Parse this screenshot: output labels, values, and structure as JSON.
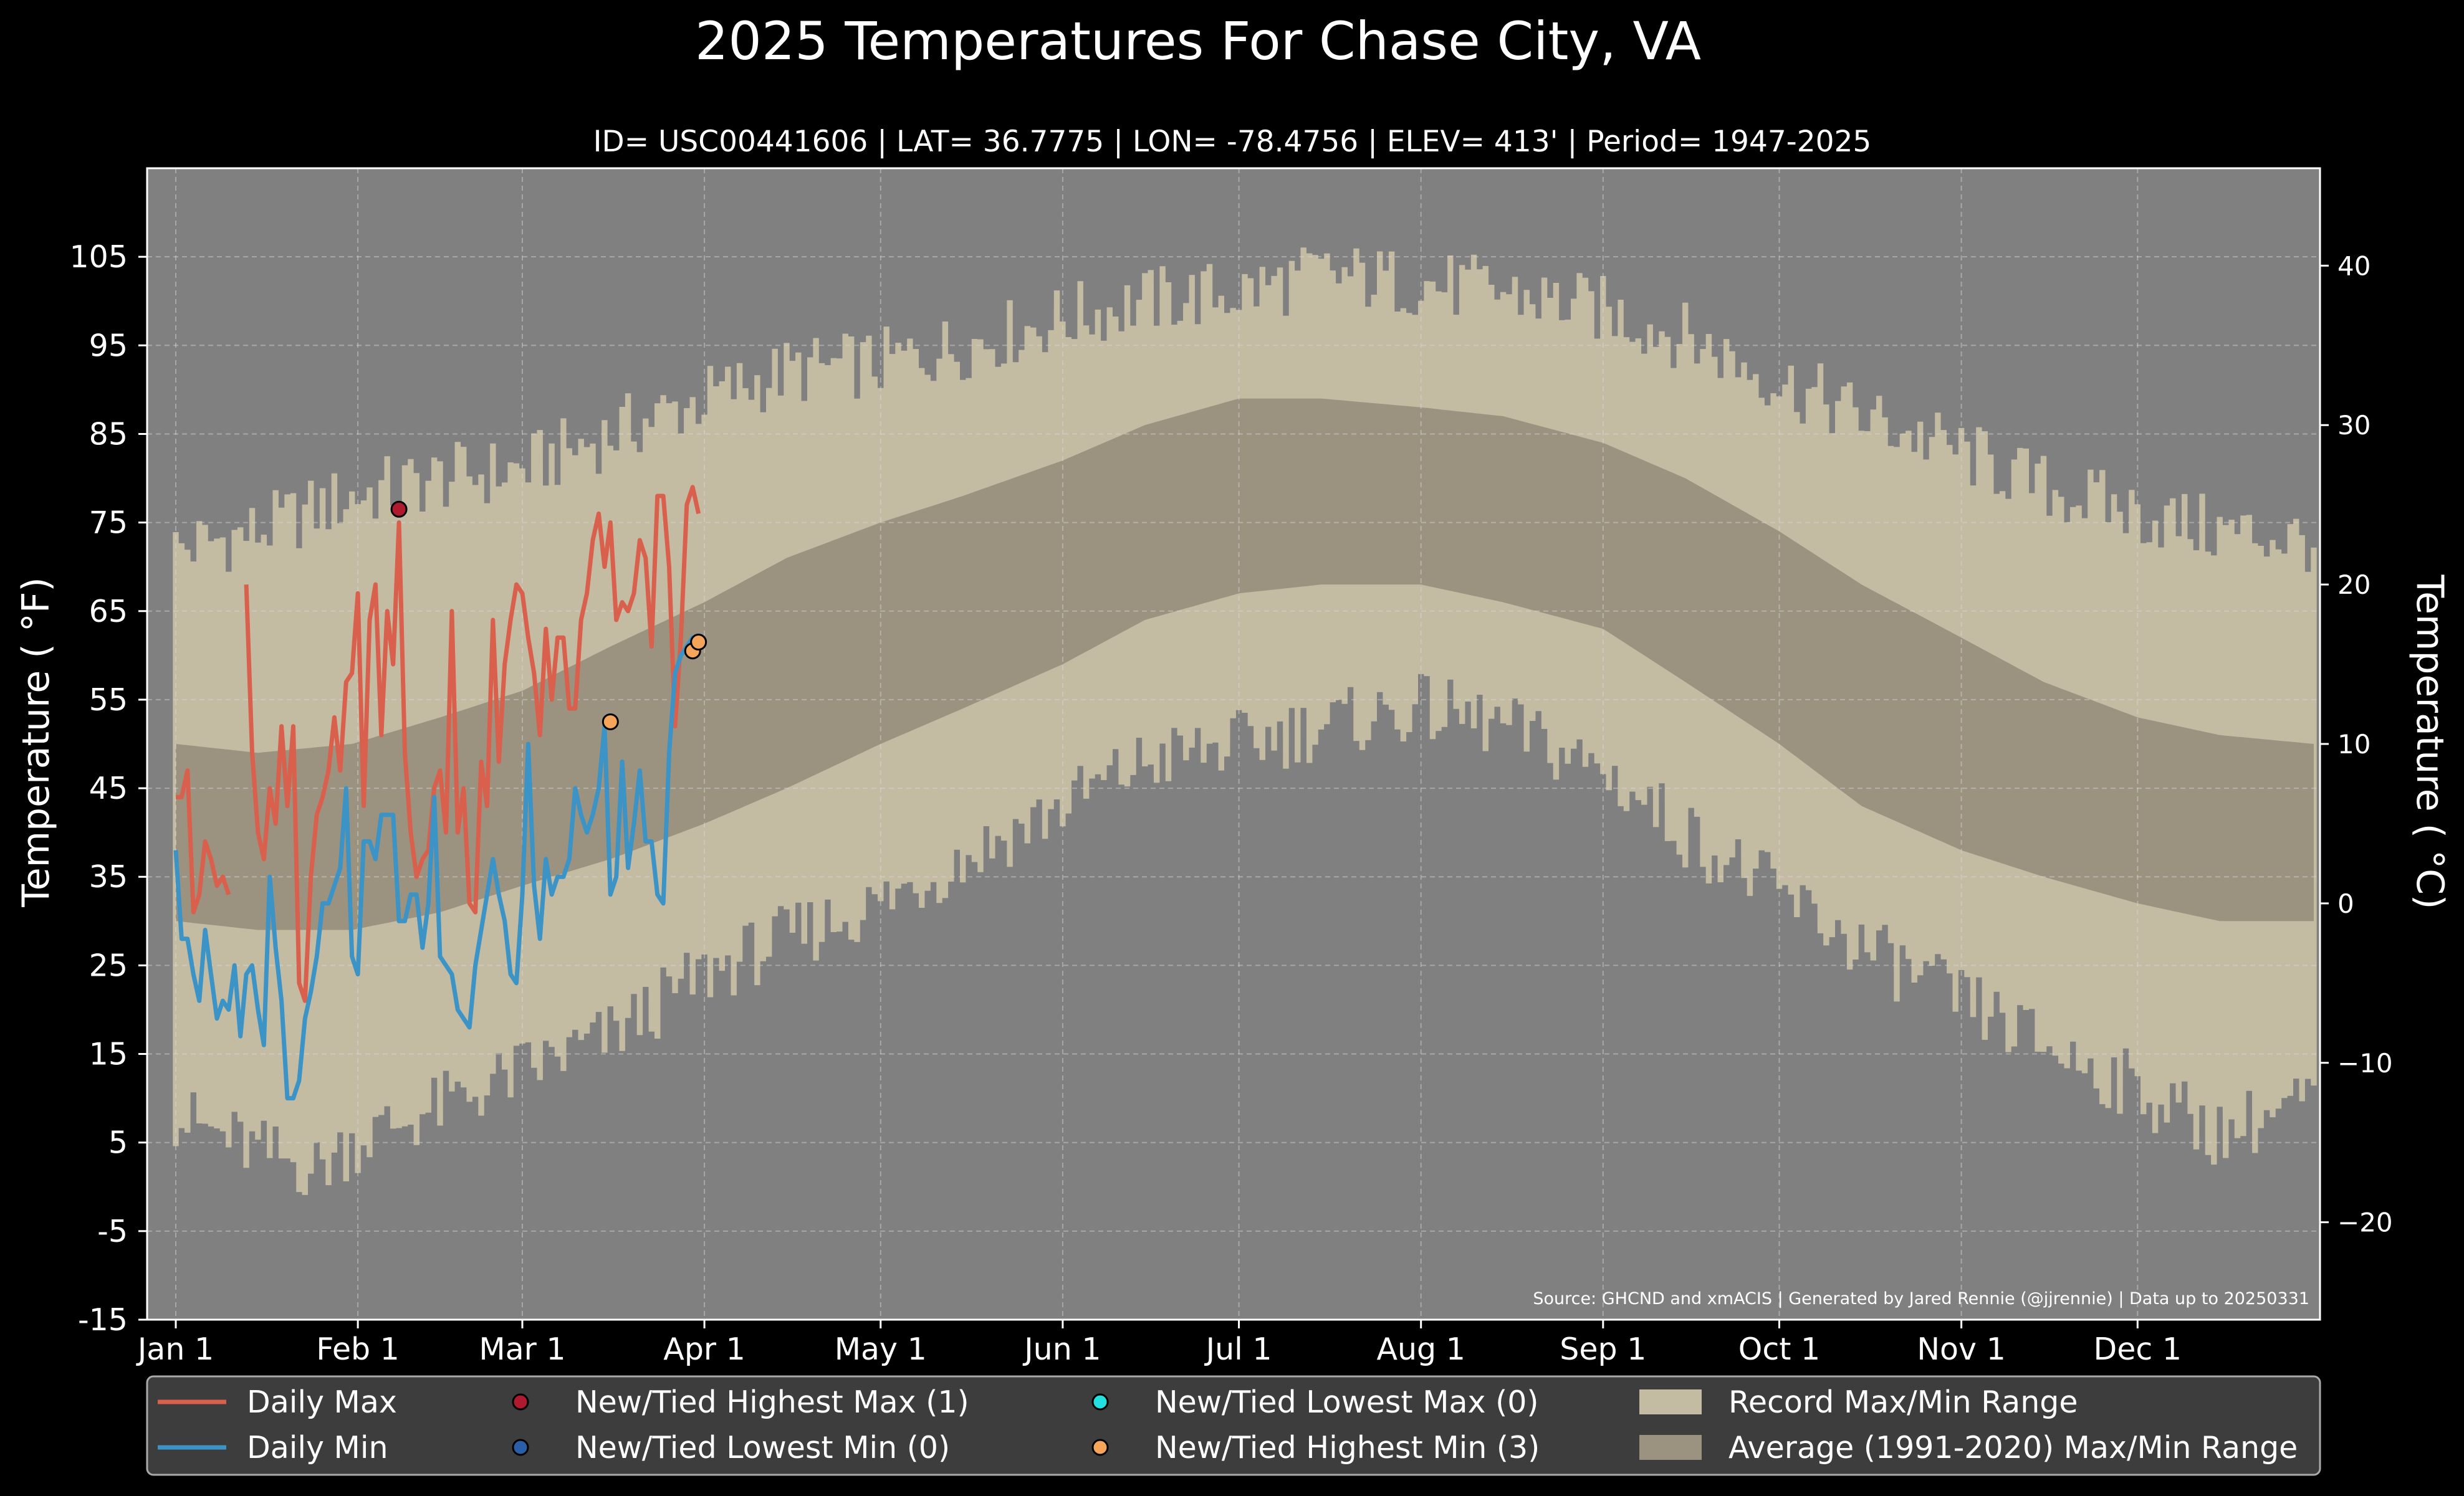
{
  "title": "2025 Temperatures For Chase City, VA",
  "subtitle": "ID= USC00441606 | LAT= 36.7775 | LON= -78.4756 | ELEV= 413' | Period= 1947-2025",
  "source": "Source: GHCND and xmACIS | Generated by Jared Rennie (@jjrennie) | Data up to 20250331",
  "colors": {
    "background": "#000000",
    "plot_bg": "#808080",
    "record_range": "#c4bba3",
    "normal_range": "#9b9280",
    "daily_max": "#d9604c",
    "daily_min": "#3c93c6",
    "highest_max_marker": "#b01a2e",
    "lowest_min_marker": "#2a5fa8",
    "lowest_max_marker": "#22e0e0",
    "highest_min_marker": "#f5a55a",
    "legend_bg": "#3d3d3d"
  },
  "chart_data": {
    "type": "line",
    "xlabel": "",
    "ylabel": "Temperature ( °F)",
    "ylabel_right": "Temperature ( °C)",
    "ylim": [
      -15,
      115
    ],
    "y_ticks": [
      "105",
      "95",
      "85",
      "75",
      "65",
      "55",
      "45",
      "35",
      "25",
      "15",
      "5",
      "-5",
      "-15"
    ],
    "y_ticks_right": [
      "40",
      "30",
      "20",
      "10",
      "0",
      "−10",
      "−20"
    ],
    "x_ticks": [
      "Jan 1",
      "Feb 1",
      "Mar 1",
      "Apr 1",
      "May 1",
      "Jun 1",
      "Jul 1",
      "Aug 1",
      "Sep 1",
      "Oct 1",
      "Nov 1",
      "Dec 1"
    ],
    "grid": true,
    "record_max_anchors": [
      [
        1,
        72
      ],
      [
        15,
        74
      ],
      [
        31,
        78
      ],
      [
        46,
        80
      ],
      [
        60,
        81
      ],
      [
        75,
        85
      ],
      [
        91,
        89
      ],
      [
        105,
        92
      ],
      [
        121,
        93
      ],
      [
        135,
        95
      ],
      [
        152,
        98
      ],
      [
        166,
        100
      ],
      [
        182,
        101
      ],
      [
        196,
        103
      ],
      [
        213,
        102
      ],
      [
        227,
        101
      ],
      [
        244,
        99
      ],
      [
        258,
        96
      ],
      [
        274,
        91
      ],
      [
        288,
        87
      ],
      [
        305,
        83
      ],
      [
        319,
        79
      ],
      [
        335,
        76
      ],
      [
        349,
        74
      ],
      [
        365,
        73
      ]
    ],
    "record_min_anchors": [
      [
        1,
        8
      ],
      [
        15,
        4
      ],
      [
        25,
        2
      ],
      [
        31,
        5
      ],
      [
        46,
        9
      ],
      [
        60,
        13
      ],
      [
        75,
        17
      ],
      [
        91,
        24
      ],
      [
        105,
        28
      ],
      [
        121,
        32
      ],
      [
        135,
        37
      ],
      [
        152,
        43
      ],
      [
        166,
        48
      ],
      [
        182,
        50
      ],
      [
        196,
        52
      ],
      [
        213,
        54
      ],
      [
        227,
        52
      ],
      [
        244,
        47
      ],
      [
        258,
        40
      ],
      [
        274,
        33
      ],
      [
        288,
        27
      ],
      [
        305,
        21
      ],
      [
        319,
        16
      ],
      [
        335,
        11
      ],
      [
        349,
        6
      ],
      [
        365,
        10
      ]
    ],
    "normal_max_anchors": [
      [
        1,
        50
      ],
      [
        15,
        49
      ],
      [
        31,
        50
      ],
      [
        46,
        53
      ],
      [
        60,
        56
      ],
      [
        75,
        61
      ],
      [
        91,
        66
      ],
      [
        105,
        71
      ],
      [
        121,
        75
      ],
      [
        135,
        78
      ],
      [
        152,
        82
      ],
      [
        166,
        86
      ],
      [
        182,
        89
      ],
      [
        196,
        89
      ],
      [
        213,
        88
      ],
      [
        227,
        87
      ],
      [
        244,
        84
      ],
      [
        258,
        80
      ],
      [
        274,
        74
      ],
      [
        288,
        68
      ],
      [
        305,
        62
      ],
      [
        319,
        57
      ],
      [
        335,
        53
      ],
      [
        349,
        51
      ],
      [
        365,
        50
      ]
    ],
    "normal_min_anchors": [
      [
        1,
        30
      ],
      [
        15,
        29
      ],
      [
        31,
        29
      ],
      [
        46,
        31
      ],
      [
        60,
        34
      ],
      [
        75,
        37
      ],
      [
        91,
        41
      ],
      [
        105,
        45
      ],
      [
        121,
        50
      ],
      [
        135,
        54
      ],
      [
        152,
        59
      ],
      [
        166,
        64
      ],
      [
        182,
        67
      ],
      [
        196,
        68
      ],
      [
        213,
        68
      ],
      [
        227,
        66
      ],
      [
        244,
        63
      ],
      [
        258,
        57
      ],
      [
        274,
        50
      ],
      [
        288,
        43
      ],
      [
        305,
        38
      ],
      [
        319,
        35
      ],
      [
        335,
        32
      ],
      [
        349,
        30
      ],
      [
        365,
        30
      ]
    ],
    "series": [
      {
        "name": "Daily Max",
        "x": [
          1,
          2,
          3,
          4,
          5,
          6,
          7,
          8,
          9,
          10,
          11,
          12,
          13,
          14,
          15,
          16,
          17,
          18,
          19,
          20,
          21,
          22,
          23,
          24,
          25,
          26,
          27,
          28,
          29,
          30,
          31,
          32,
          33,
          34,
          35,
          36,
          37,
          38,
          39,
          40,
          41,
          42,
          43,
          44,
          45,
          46,
          47,
          48,
          49,
          50,
          51,
          52,
          53,
          54,
          55,
          56,
          57,
          58,
          59,
          60,
          61,
          62,
          63,
          64,
          65,
          66,
          67,
          68,
          69,
          70,
          71,
          72,
          73,
          74,
          75,
          76,
          77,
          78,
          79,
          80,
          81,
          82,
          83,
          84,
          85,
          86,
          87,
          88,
          89,
          90
        ],
        "y": [
          44,
          44,
          47,
          31,
          33,
          39,
          37,
          34,
          35,
          33,
          null,
          null,
          68,
          49,
          40,
          37,
          45,
          41,
          52,
          43,
          52,
          23,
          21,
          35,
          42,
          44,
          47,
          53,
          47,
          57,
          58,
          67,
          43,
          64,
          68,
          51,
          65,
          59,
          75,
          49,
          40,
          35,
          37,
          38,
          45,
          47,
          40,
          65,
          40,
          45,
          32,
          31,
          48,
          43,
          64,
          48,
          59,
          64,
          68,
          67,
          62,
          58,
          51,
          63,
          55,
          62,
          62,
          54,
          54,
          64,
          67,
          73,
          76,
          70,
          75,
          64,
          66,
          65,
          67,
          73,
          71,
          61,
          78,
          78,
          70,
          52,
          62,
          77,
          79,
          76
        ],
        "y_end": 79
      },
      {
        "name": "Daily Min",
        "x": [
          1,
          2,
          3,
          4,
          5,
          6,
          7,
          8,
          9,
          10,
          11,
          12,
          13,
          14,
          15,
          16,
          17,
          18,
          19,
          20,
          21,
          22,
          23,
          24,
          25,
          26,
          27,
          28,
          29,
          30,
          31,
          32,
          33,
          34,
          35,
          36,
          37,
          38,
          39,
          40,
          41,
          42,
          43,
          44,
          45,
          46,
          47,
          48,
          49,
          50,
          51,
          52,
          53,
          54,
          55,
          56,
          57,
          58,
          59,
          60,
          61,
          62,
          63,
          64,
          65,
          66,
          67,
          68,
          69,
          70,
          71,
          72,
          73,
          74,
          75,
          76,
          77,
          78,
          79,
          80,
          81,
          82,
          83,
          84,
          85,
          86,
          87,
          88,
          89,
          90
        ],
        "y": [
          38,
          28,
          28,
          24,
          21,
          29,
          24,
          19,
          21,
          20,
          25,
          17,
          24,
          25,
          20,
          16,
          35,
          27,
          21,
          10,
          10,
          12,
          19,
          22,
          26,
          32,
          32,
          34,
          36,
          45,
          26,
          24,
          39,
          39,
          37,
          42,
          42,
          42,
          30,
          30,
          33,
          33,
          27,
          32,
          44,
          26,
          25,
          24,
          20,
          19,
          18,
          25,
          29,
          33,
          37,
          33,
          30,
          24,
          23,
          33,
          50,
          34,
          28,
          37,
          33,
          35,
          35,
          37,
          45,
          42,
          40,
          42,
          45,
          52,
          33,
          35,
          48,
          36,
          41,
          47,
          39,
          39,
          33,
          32,
          49,
          58,
          60,
          61,
          62,
          61
        ]
      }
    ],
    "markers": [
      {
        "series": "New/Tied Highest Max",
        "x": 39,
        "y": 76.5
      },
      {
        "series": "New/Tied Highest Min",
        "x": 75,
        "y": 52.5
      },
      {
        "series": "New/Tied Highest Min",
        "x": 89,
        "y": 60.5
      },
      {
        "series": "New/Tied Highest Min",
        "x": 90,
        "y": 61.5
      }
    ]
  },
  "legend": {
    "items": [
      {
        "label": "Daily Max",
        "kind": "line",
        "color_key": "daily_max"
      },
      {
        "label": "Daily Min",
        "kind": "line",
        "color_key": "daily_min"
      },
      {
        "label": "New/Tied Highest Max (1)",
        "kind": "dot",
        "color_key": "highest_max_marker"
      },
      {
        "label": "New/Tied Lowest Min (0)",
        "kind": "dot",
        "color_key": "lowest_min_marker"
      },
      {
        "label": "New/Tied Lowest Max (0)",
        "kind": "dot",
        "color_key": "lowest_max_marker"
      },
      {
        "label": "New/Tied Highest Min (3)",
        "kind": "dot",
        "color_key": "highest_min_marker"
      },
      {
        "label": "Record Max/Min Range",
        "kind": "patch",
        "color_key": "record_range"
      },
      {
        "label": "Average (1991-2020) Max/Min Range",
        "kind": "patch",
        "color_key": "normal_range"
      }
    ]
  }
}
